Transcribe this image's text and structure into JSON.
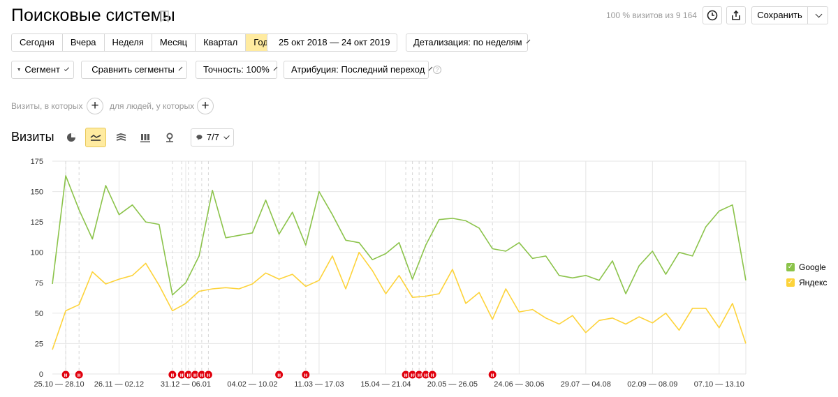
{
  "header": {
    "title": "Поисковые системы",
    "visits_summary": "100 % визитов из 9 164",
    "save_label": "Сохранить"
  },
  "periods": {
    "items": [
      "Сегодня",
      "Вчера",
      "Неделя",
      "Месяц",
      "Квартал",
      "Год"
    ],
    "active": "Год"
  },
  "date_range": "25 окт 2018 — 24 окт 2019",
  "detail_label": "Детализация: по неделям",
  "filters": {
    "segment": "Сегмент",
    "compare": "Сравнить сегменты",
    "accuracy": "Точность: 100%",
    "attribution": "Атрибуция: Последний переход"
  },
  "conditions": {
    "visits_label": "Визиты, в которых",
    "people_label": "для людей, у которых"
  },
  "viz": {
    "title": "Визиты",
    "annotations_count": "7/7"
  },
  "colors": {
    "google": "#8bc34a",
    "yandex": "#fdd33a",
    "active_bg": "#ffeba0",
    "marker": "#e0000d"
  },
  "chart_data": {
    "type": "line",
    "ylim": [
      0,
      175
    ],
    "yticks": [
      0,
      25,
      50,
      75,
      100,
      125,
      150,
      175
    ],
    "grid": true,
    "legend_position": "right",
    "week_count": 53,
    "xtick_labels": [
      {
        "index": 0.5,
        "label": "25.10 — 28.10"
      },
      {
        "index": 5,
        "label": "26.11 — 02.12"
      },
      {
        "index": 10,
        "label": "31.12 — 06.01"
      },
      {
        "index": 15,
        "label": "04.02 — 10.02"
      },
      {
        "index": 20,
        "label": "11.03 — 17.03"
      },
      {
        "index": 25,
        "label": "15.04 — 21.04"
      },
      {
        "index": 30,
        "label": "20.05 — 26.05"
      },
      {
        "index": 35,
        "label": "24.06 — 30.06"
      },
      {
        "index": 40,
        "label": "29.07 — 04.08"
      },
      {
        "index": 45,
        "label": "02.09 — 08.09"
      },
      {
        "index": 50,
        "label": "07.10 — 13.10"
      }
    ],
    "series": [
      {
        "name": "Google",
        "values": [
          74,
          163,
          135,
          111,
          155,
          131,
          139,
          125,
          123,
          65,
          75,
          97,
          151,
          112,
          114,
          116,
          143,
          115,
          133,
          106,
          150,
          131,
          110,
          108,
          94,
          99,
          108,
          78,
          106,
          127,
          128,
          126,
          120,
          103,
          101,
          108,
          95,
          97,
          81,
          79,
          81,
          77,
          93,
          66,
          89,
          101,
          82,
          100,
          97,
          121,
          134,
          139,
          77
        ]
      },
      {
        "name": "Яндекс",
        "values": [
          20,
          52,
          57,
          84,
          74,
          78,
          81,
          91,
          73,
          52,
          58,
          68,
          70,
          71,
          70,
          74,
          83,
          78,
          82,
          72,
          77,
          97,
          70,
          100,
          85,
          66,
          81,
          63,
          64,
          66,
          86,
          58,
          67,
          45,
          70,
          51,
          53,
          46,
          41,
          48,
          34,
          44,
          46,
          41,
          47,
          42,
          50,
          36,
          54,
          54,
          38,
          58,
          25
        ]
      }
    ],
    "holiday_markers": [
      {
        "index": 1,
        "label": "н"
      },
      {
        "index": 2,
        "label": "н"
      },
      {
        "index": 9,
        "label": "н"
      },
      {
        "index": 9.7,
        "label": "н"
      },
      {
        "index": 10.2,
        "label": "н"
      },
      {
        "index": 10.7,
        "label": "н"
      },
      {
        "index": 11.2,
        "label": "н"
      },
      {
        "index": 11.7,
        "label": "н"
      },
      {
        "index": 17,
        "label": "н"
      },
      {
        "index": 19,
        "label": "н"
      },
      {
        "index": 26.5,
        "label": "н"
      },
      {
        "index": 27,
        "label": "н"
      },
      {
        "index": 27.5,
        "label": "н"
      },
      {
        "index": 28,
        "label": "н"
      },
      {
        "index": 28.5,
        "label": "н"
      },
      {
        "index": 33,
        "label": "н"
      }
    ]
  }
}
